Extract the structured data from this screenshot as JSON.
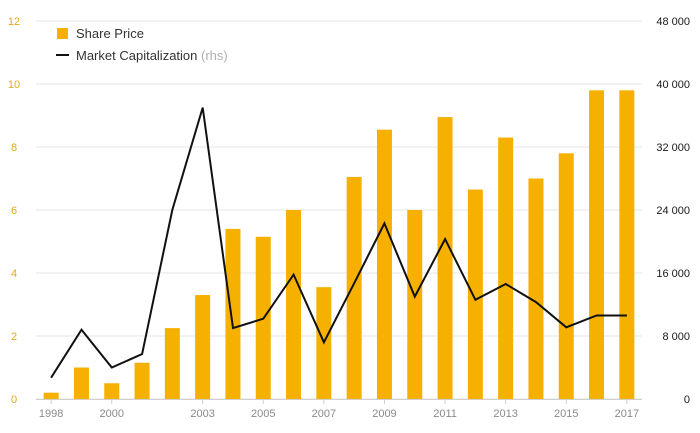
{
  "colors": {
    "bar": "#f5b000",
    "line": "#111111",
    "grid": "#e6e6e6",
    "left_tick": "#e6a817",
    "right_tick": "#1a1a1a",
    "x_tick": "#8a8a8a"
  },
  "legend": {
    "bar_label": "Share Price",
    "line_label": "Market Capitalization",
    "line_suffix": "(rhs)"
  },
  "chart_data": {
    "type": "bar",
    "x": [
      1998,
      1999,
      2000,
      2001,
      2002,
      2003,
      2004,
      2005,
      2006,
      2007,
      2008,
      2009,
      2010,
      2011,
      2012,
      2013,
      2014,
      2015,
      2016,
      2017
    ],
    "x_tick_labels": [
      "1998",
      "2000",
      "2003",
      "2005",
      "2007",
      "2009",
      "2011",
      "2013",
      "2015",
      "2017"
    ],
    "x_tick_indices": [
      0,
      2,
      5,
      7,
      9,
      11,
      13,
      15,
      17,
      19
    ],
    "series": [
      {
        "name": "Share Price",
        "type": "bar",
        "axis": "left",
        "values": [
          0.2,
          1.0,
          0.5,
          1.15,
          2.25,
          3.3,
          5.4,
          5.15,
          6.0,
          3.55,
          7.05,
          8.55,
          6.0,
          8.95,
          6.65,
          8.3,
          7.0,
          7.8,
          9.8,
          9.8
        ]
      },
      {
        "name": "Market Capitalization",
        "type": "line",
        "axis": "right",
        "values": [
          2700,
          8800,
          4000,
          5700,
          24000,
          37000,
          9000,
          10200,
          15800,
          7200,
          14700,
          22300,
          13000,
          20300,
          12600,
          14600,
          12300,
          9100,
          10600,
          10600
        ]
      }
    ],
    "left_axis": {
      "ylim": [
        0,
        12
      ],
      "ticks": [
        "0",
        "2",
        "4",
        "6",
        "8",
        "10",
        "12"
      ]
    },
    "right_axis": {
      "ylim": [
        0,
        48000
      ],
      "ticks": [
        "0",
        "8 000",
        "16 000",
        "24 000",
        "32 000",
        "40 000",
        "48 000"
      ]
    },
    "grid": true,
    "legend_position": "top-left"
  }
}
